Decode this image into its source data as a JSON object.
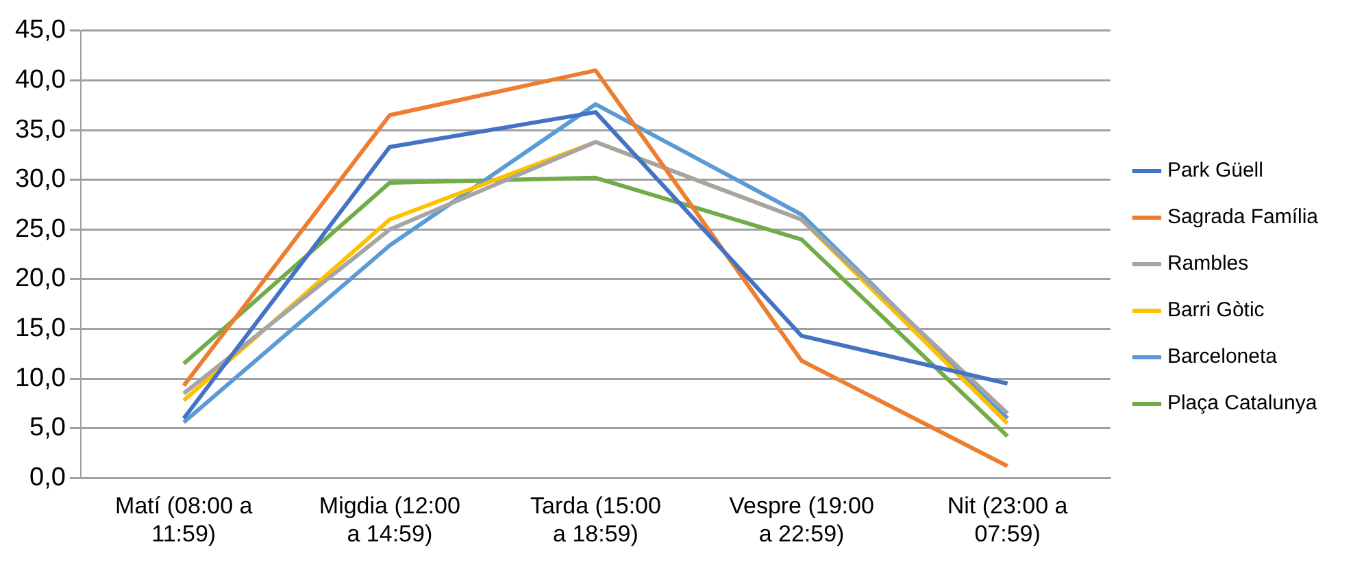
{
  "chart_data": {
    "type": "line",
    "categories": [
      "Matí (08:00 a 11:59)",
      "Migdia (12:00 a 14:59)",
      "Tarda (15:00 a 18:59)",
      "Vespre (19:00 a 22:59)",
      "Nit (23:00 a 07:59)"
    ],
    "series": [
      {
        "name": "Park Güell",
        "color": "#4472c4",
        "values": [
          6.0,
          33.3,
          36.8,
          14.3,
          9.5
        ]
      },
      {
        "name": "Sagrada Família",
        "color": "#ed7d31",
        "values": [
          9.3,
          36.5,
          41.0,
          11.8,
          1.2
        ]
      },
      {
        "name": "Rambles",
        "color": "#a5a5a5",
        "values": [
          8.5,
          25.0,
          33.8,
          26.0,
          6.5
        ]
      },
      {
        "name": "Barri Gòtic",
        "color": "#ffc000",
        "values": [
          7.8,
          26.0,
          33.8,
          26.0,
          5.5
        ]
      },
      {
        "name": "Barceloneta",
        "color": "#5b9bd5",
        "values": [
          5.6,
          23.4,
          37.6,
          26.5,
          6.0
        ]
      },
      {
        "name": "Plaça Catalunya",
        "color": "#70ad47",
        "values": [
          11.5,
          29.7,
          30.2,
          24.0,
          4.2
        ]
      }
    ],
    "ylim": [
      0,
      45
    ],
    "yticks": [
      {
        "value": 0,
        "label": "0,0"
      },
      {
        "value": 5,
        "label": "5,0"
      },
      {
        "value": 10,
        "label": "10,0"
      },
      {
        "value": 15,
        "label": "15,0"
      },
      {
        "value": 20,
        "label": "20,0"
      },
      {
        "value": 25,
        "label": "25,0"
      },
      {
        "value": 30,
        "label": "30,0"
      },
      {
        "value": 35,
        "label": "35,0"
      },
      {
        "value": 40,
        "label": "40,0"
      },
      {
        "value": 45,
        "label": "45,0"
      }
    ],
    "grid": "y",
    "legend": "right",
    "marker": "none",
    "line_style": "solid"
  }
}
